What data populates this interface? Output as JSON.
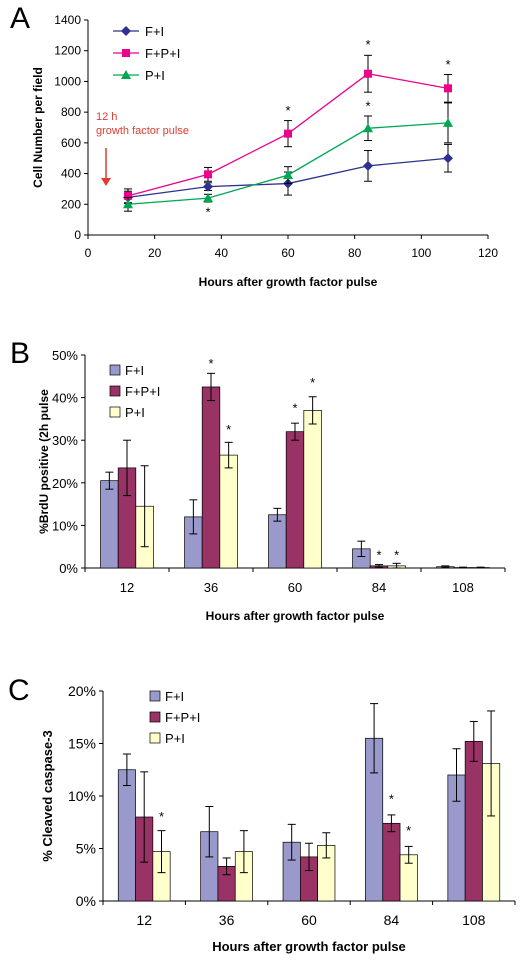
{
  "chart_data": [
    {
      "panel_label": "A",
      "type": "line",
      "xlabel": "Hours after growth factor pulse",
      "ylabel": "Cell Number per field",
      "xlim": [
        0,
        120
      ],
      "ylim": [
        0,
        1400
      ],
      "x_ticks": [
        "0",
        "20",
        "40",
        "60",
        "80",
        "100",
        "120"
      ],
      "y_ticks": [
        "0",
        "200",
        "400",
        "600",
        "800",
        "1000",
        "1200",
        "1400"
      ],
      "x": [
        12,
        36,
        60,
        84,
        108
      ],
      "annotation": "12 h\ngrowth factor pulse",
      "annotation_color": "#e03c31",
      "grid": false,
      "legend_position": "top-left",
      "series": [
        {
          "name": "F+I",
          "color": "#2e3192",
          "marker": "diamond",
          "values": [
            245,
            315,
            335,
            450,
            500
          ],
          "errors": [
            40,
            25,
            75,
            100,
            90
          ]
        },
        {
          "name": "F+P+I",
          "color": "#ec008c",
          "marker": "square",
          "values": [
            255,
            395,
            660,
            1050,
            955
          ],
          "errors": [
            45,
            45,
            85,
            120,
            90
          ]
        },
        {
          "name": "P+I",
          "color": "#00a651",
          "marker": "triangle",
          "values": [
            200,
            240,
            390,
            695,
            730
          ],
          "errors": [
            45,
            25,
            55,
            80,
            130
          ]
        }
      ],
      "significance_marks": [
        {
          "text": "*",
          "x": 36,
          "y": 120
        },
        {
          "text": "*",
          "x": 60,
          "y": 780
        },
        {
          "text": "*",
          "x": 84,
          "y": 1210
        },
        {
          "text": "*",
          "x": 84,
          "y": 810
        },
        {
          "text": "*",
          "x": 108,
          "y": 1080
        }
      ]
    },
    {
      "panel_label": "B",
      "type": "bar",
      "xlabel": "Hours after growth factor pulse",
      "ylabel": "%BrdU positive (2h pulse",
      "categories": [
        "12",
        "36",
        "60",
        "84",
        "108"
      ],
      "ylim": [
        0,
        50
      ],
      "y_ticks": [
        "0%",
        "10%",
        "20%",
        "30%",
        "40%",
        "50%"
      ],
      "grid": false,
      "legend_position": "top-left",
      "series": [
        {
          "name": "F+I",
          "color": "#9999cc",
          "values": [
            20.5,
            12,
            12.5,
            4.5,
            0.3
          ],
          "errors": [
            2,
            4,
            1.5,
            1.8,
            0.2
          ]
        },
        {
          "name": "F+P+I",
          "color": "#993366",
          "values": [
            23.5,
            42.5,
            32,
            0.5,
            0.1
          ],
          "errors": [
            6.5,
            3.2,
            2,
            0.3,
            0.1
          ]
        },
        {
          "name": "P+I",
          "color": "#ffffcc",
          "values": [
            14.5,
            26.5,
            37,
            0.5,
            0.1
          ],
          "errors": [
            9.5,
            3,
            3.2,
            0.6,
            0.1
          ]
        }
      ],
      "significance_marks": [
        {
          "text": "*",
          "category": "36",
          "series": 1,
          "y": 47
        },
        {
          "text": "*",
          "category": "36",
          "series": 2,
          "y": 31.5
        },
        {
          "text": "*",
          "category": "60",
          "series": 1,
          "y": 36.5
        },
        {
          "text": "*",
          "category": "60",
          "series": 2,
          "y": 42.5
        },
        {
          "text": "*",
          "category": "84",
          "series": 1,
          "y": 2
        },
        {
          "text": "*",
          "category": "84",
          "series": 2,
          "y": 2
        }
      ]
    },
    {
      "panel_label": "C",
      "type": "bar",
      "xlabel": "Hours after growth factor pulse",
      "ylabel": "% Cleaved caspase-3",
      "categories": [
        "12",
        "36",
        "60",
        "84",
        "108"
      ],
      "ylim": [
        0,
        20
      ],
      "y_ticks": [
        "0%",
        "5%",
        "10%",
        "15%",
        "20%"
      ],
      "grid": false,
      "legend_position": "top-left",
      "series": [
        {
          "name": "F+I",
          "color": "#9999cc",
          "values": [
            12.5,
            6.6,
            5.6,
            15.5,
            12
          ],
          "errors": [
            1.5,
            2.4,
            1.7,
            3.3,
            2.5
          ]
        },
        {
          "name": "F+P+I",
          "color": "#993366",
          "values": [
            8,
            3.3,
            4.2,
            7.4,
            15.2
          ],
          "errors": [
            4.3,
            0.8,
            1.3,
            0.8,
            1.9
          ]
        },
        {
          "name": "P+I",
          "color": "#ffffcc",
          "values": [
            4.7,
            4.7,
            5.3,
            4.4,
            13.1
          ],
          "errors": [
            2,
            2,
            1.2,
            0.8,
            5
          ]
        }
      ],
      "significance_marks": [
        {
          "text": "*",
          "category": "12",
          "series": 2,
          "y": 7.6
        },
        {
          "text": "*",
          "category": "84",
          "series": 1,
          "y": 9.3
        },
        {
          "text": "*",
          "category": "84",
          "series": 2,
          "y": 6.3
        }
      ]
    }
  ]
}
